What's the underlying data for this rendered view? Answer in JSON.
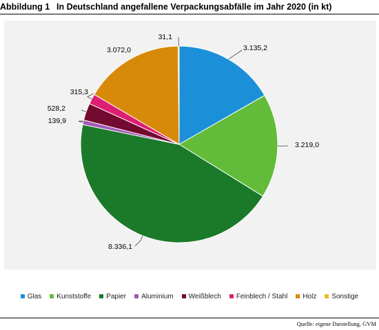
{
  "figure": {
    "number": "Abbildung 1",
    "title": "In Deutschland angefallene Verpackungsabfälle im Jahr 2020 (in kt)"
  },
  "chart_data": {
    "type": "pie",
    "title": "",
    "categories": [
      "Glas",
      "Kunststoffe",
      "Papier",
      "Aluminium",
      "Weißblech",
      "Feinblech / Stahl",
      "Holz",
      "Sonstige"
    ],
    "values": [
      3135.2,
      3219.0,
      8336.1,
      139.9,
      528.2,
      315.3,
      3072.0,
      31.1
    ],
    "data_labels": [
      "3.135,2",
      "3.219,0",
      "8.336,1",
      "139,9",
      "528,2",
      "315,3",
      "3.072,0",
      "31,1"
    ],
    "colors": [
      "#1b90d8",
      "#63bb3a",
      "#1a7a2a",
      "#a35ab5",
      "#730a2f",
      "#dd1f74",
      "#d78a0a",
      "#f1b92a"
    ],
    "unit": "kt",
    "legend_position": "bottom",
    "start_angle": "12 o'clock",
    "direction": "clockwise"
  },
  "source": "Quelle: eigene Darstellung, GVM"
}
